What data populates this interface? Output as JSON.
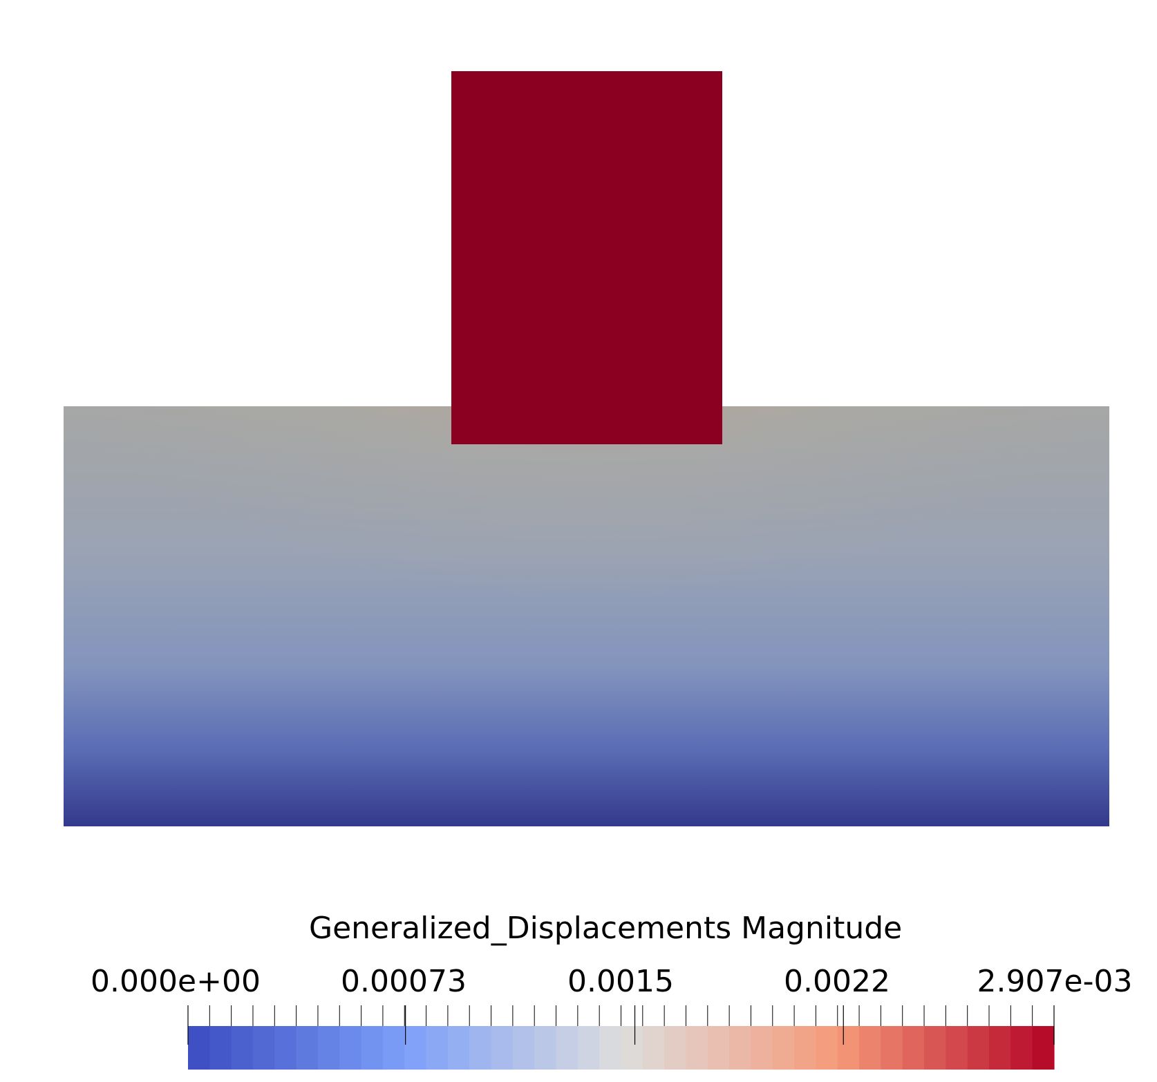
{
  "colorbar": {
    "title": "Generalized_Displacements Magnitude",
    "range": [
      0.0,
      0.002907
    ],
    "labels": [
      {
        "text": "0.000e+00",
        "value": 0.0
      },
      {
        "text": "0.00073",
        "value": 0.00073
      },
      {
        "text": "0.0015",
        "value": 0.0015
      },
      {
        "text": "0.0022",
        "value": 0.0022
      },
      {
        "text": "2.907e-03",
        "value": 0.002907
      }
    ],
    "colormap": "Cool to Warm",
    "colors": {
      "low": "#3b4cc0",
      "mid": "#dddddd",
      "high": "#b40426"
    },
    "discrete_steps": 40
  },
  "scene": {
    "background": "#ffffff",
    "colors": {
      "punch": "#8b0020",
      "foundation_top": "#a6a7a5",
      "foundation_bottom": "#33398c",
      "bulb_core": "#8b0020",
      "bulb_mid": "#c0836b"
    }
  }
}
